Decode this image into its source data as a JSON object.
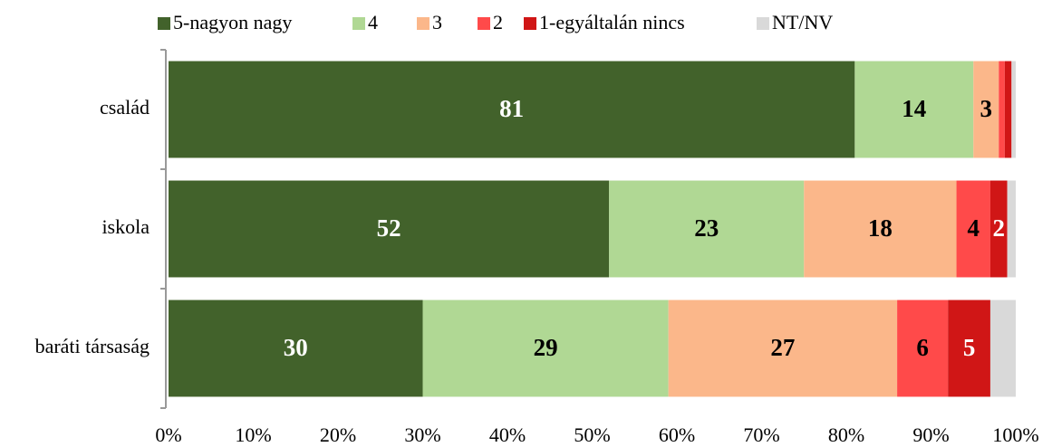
{
  "chart_data": {
    "type": "stacked-bar-horizontal",
    "categories": [
      "család",
      "iskola",
      "baráti társaság"
    ],
    "series": [
      {
        "name": "5-nagyon nagy",
        "color": "#42622b",
        "label_color": "#ffffff",
        "values": [
          81,
          52,
          30
        ]
      },
      {
        "name": "4",
        "color": "#b0d894",
        "label_color": "#000000",
        "values": [
          14,
          23,
          29
        ]
      },
      {
        "name": "3",
        "color": "#fbb78a",
        "label_color": "#000000",
        "values": [
          3,
          18,
          27
        ]
      },
      {
        "name": "2",
        "color": "#ff4a4a",
        "label_color": "#000000",
        "values": [
          0.7,
          4,
          6
        ]
      },
      {
        "name": "1-egyáltalán nincs",
        "color": "#d01616",
        "label_color": "#ffffff",
        "values": [
          0.8,
          2,
          5
        ]
      },
      {
        "name": "NT/NV",
        "color": "#d9d9d9",
        "label_color": "#000000",
        "values": [
          0.5,
          1,
          3
        ]
      }
    ],
    "xlim": [
      0,
      100
    ],
    "xticks": [
      {
        "value": 0,
        "label": "0%"
      },
      {
        "value": 10,
        "label": "10%"
      },
      {
        "value": 20,
        "label": "20%"
      },
      {
        "value": 30,
        "label": "30%"
      },
      {
        "value": 40,
        "label": "40%"
      },
      {
        "value": 50,
        "label": "50%"
      },
      {
        "value": 60,
        "label": "60%"
      },
      {
        "value": 70,
        "label": "70%"
      },
      {
        "value": 80,
        "label": "80%"
      },
      {
        "value": 90,
        "label": "90%"
      },
      {
        "value": 100,
        "label": "100%"
      }
    ],
    "legend": "top"
  }
}
